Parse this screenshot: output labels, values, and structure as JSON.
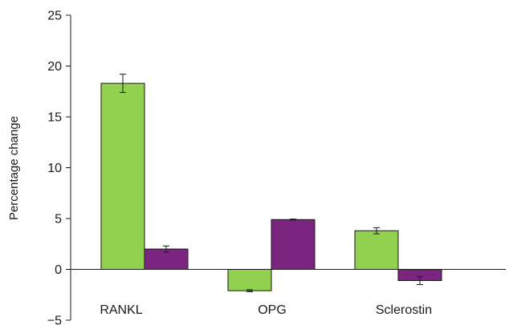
{
  "chart_data": {
    "type": "bar",
    "title": "",
    "xlabel": "",
    "ylabel": "Percentage change",
    "ylim": [
      -5,
      25
    ],
    "yticks": [
      -5,
      0,
      5,
      10,
      15,
      20,
      25
    ],
    "grid": false,
    "legend": "none",
    "categories": [
      "RANKL",
      "OPG",
      "Sclerostin"
    ],
    "series": [
      {
        "color": "#92d050",
        "values": [
          18.3,
          -2.1,
          3.8
        ],
        "errors": [
          0.9,
          0.1,
          0.3
        ]
      },
      {
        "color": "#7b2580",
        "values": [
          2.0,
          4.9,
          -1.1
        ],
        "errors": [
          0.3,
          0.05,
          0.4
        ]
      }
    ]
  }
}
